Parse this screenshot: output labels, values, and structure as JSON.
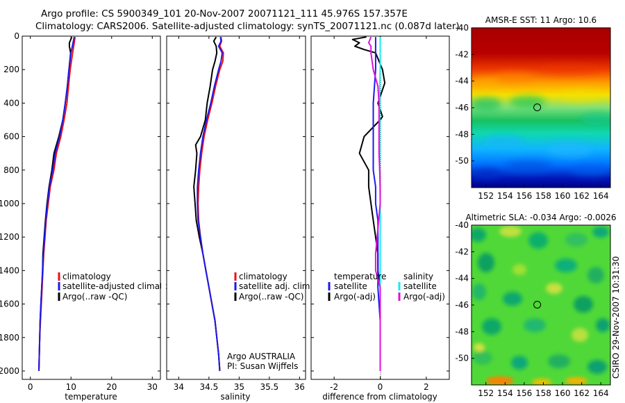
{
  "header": {
    "line1": "Argo profile: CS 5900349_101 20-Nov-2007 20071121_111 45.976S 157.357E",
    "line2": "Climatology: CARS2006. Satellite-adjusted climatology: synTS_20071121.nc (0.087d later)"
  },
  "credit": "CSIRO 29-Nov-2007 10:31:30",
  "colors": {
    "red": "#ee1111",
    "blue": "#1a1aee",
    "black": "#000000",
    "cyan": "#11eeee",
    "magenta": "#dd11dd"
  },
  "chart_data": [
    {
      "type": "line",
      "id": "temperature",
      "xlabel": "temperature",
      "xlim": [
        -2,
        32
      ],
      "ylim": [
        2050,
        0
      ],
      "xticks": [
        0,
        10,
        20,
        30
      ],
      "yticks": [
        0,
        200,
        400,
        600,
        800,
        1000,
        1200,
        1400,
        1600,
        1800,
        2000
      ],
      "legend": {
        "position": "center-right",
        "entries": [
          "climatology",
          "satellite-adjusted climatology",
          "Argo(..raw -QC)"
        ]
      },
      "series": [
        {
          "name": "climatology",
          "color": "red",
          "points": [
            [
              11.0,
              5
            ],
            [
              10.8,
              40
            ],
            [
              10.4,
              100
            ],
            [
              9.8,
              200
            ],
            [
              9.4,
              300
            ],
            [
              9.0,
              400
            ],
            [
              8.3,
              500
            ],
            [
              7.5,
              600
            ],
            [
              6.4,
              700
            ],
            [
              5.8,
              800
            ],
            [
              4.9,
              900
            ],
            [
              4.4,
              1000
            ],
            [
              3.9,
              1100
            ],
            [
              3.6,
              1200
            ],
            [
              3.3,
              1300
            ],
            [
              3.1,
              1400
            ],
            [
              2.9,
              1500
            ],
            [
              2.7,
              1600
            ],
            [
              2.5,
              1700
            ],
            [
              2.3,
              1800
            ],
            [
              2.2,
              1900
            ],
            [
              2.1,
              2000
            ]
          ]
        },
        {
          "name": "satellite-adjusted climatology",
          "color": "blue",
          "points": [
            [
              10.8,
              5
            ],
            [
              10.5,
              40
            ],
            [
              10.0,
              100
            ],
            [
              9.5,
              200
            ],
            [
              9.1,
              300
            ],
            [
              8.6,
              400
            ],
            [
              8.0,
              500
            ],
            [
              7.2,
              600
            ],
            [
              6.1,
              700
            ],
            [
              5.5,
              800
            ],
            [
              4.7,
              900
            ],
            [
              4.2,
              1000
            ],
            [
              3.8,
              1100
            ],
            [
              3.5,
              1200
            ],
            [
              3.2,
              1300
            ],
            [
              3.0,
              1400
            ],
            [
              2.8,
              1500
            ],
            [
              2.6,
              1600
            ],
            [
              2.4,
              1700
            ],
            [
              2.3,
              1800
            ],
            [
              2.2,
              1900
            ],
            [
              2.1,
              2000
            ]
          ]
        },
        {
          "name": "Argo(..raw -QC)",
          "color": "black",
          "points": [
            [
              10.2,
              5
            ],
            [
              9.6,
              40
            ],
            [
              9.6,
              60
            ],
            [
              9.9,
              100
            ],
            [
              9.5,
              200
            ],
            [
              9.1,
              300
            ],
            [
              8.6,
              400
            ],
            [
              8.0,
              500
            ],
            [
              7.0,
              600
            ],
            [
              5.8,
              700
            ],
            [
              5.3,
              800
            ],
            [
              4.6,
              900
            ],
            [
              4.1,
              1000
            ],
            [
              3.7,
              1100
            ],
            [
              3.4,
              1200
            ],
            [
              3.1,
              1300
            ],
            [
              3.0,
              1400
            ],
            [
              2.8,
              1500
            ],
            [
              2.6,
              1600
            ],
            [
              2.4,
              1700
            ],
            [
              2.3,
              1800
            ],
            [
              2.2,
              1900
            ],
            [
              2.1,
              2000
            ]
          ]
        }
      ]
    },
    {
      "type": "line",
      "id": "salinity",
      "xlabel": "salinity",
      "xlim": [
        33.8,
        36.1
      ],
      "ylim": [
        2050,
        0
      ],
      "xticks": [
        34,
        34.5,
        35,
        35.5,
        36
      ],
      "xticklabels": [
        "34",
        "34.5",
        "35",
        "35.5",
        "36"
      ],
      "legend": {
        "position": "center-right",
        "entries": [
          "climatology",
          "satellite adj. clim.",
          "Argo(..raw -QC)"
        ]
      },
      "annotation": [
        "Argo AUSTRALIA",
        "PI: Susan Wijffels"
      ],
      "series": [
        {
          "name": "climatology",
          "color": "red",
          "points": [
            [
              34.7,
              5
            ],
            [
              34.71,
              30
            ],
            [
              34.68,
              60
            ],
            [
              34.74,
              100
            ],
            [
              34.73,
              150
            ],
            [
              34.68,
              200
            ],
            [
              34.61,
              300
            ],
            [
              34.55,
              400
            ],
            [
              34.48,
              500
            ],
            [
              34.42,
              600
            ],
            [
              34.38,
              700
            ],
            [
              34.35,
              800
            ],
            [
              34.33,
              900
            ],
            [
              34.32,
              1000
            ],
            [
              34.33,
              1100
            ],
            [
              34.36,
              1200
            ],
            [
              34.4,
              1300
            ],
            [
              34.45,
              1400
            ],
            [
              34.5,
              1500
            ],
            [
              34.55,
              1600
            ],
            [
              34.6,
              1700
            ],
            [
              34.63,
              1800
            ],
            [
              34.66,
              1900
            ],
            [
              34.68,
              2000
            ]
          ]
        },
        {
          "name": "satellite adj. clim.",
          "color": "blue",
          "points": [
            [
              34.69,
              5
            ],
            [
              34.7,
              30
            ],
            [
              34.66,
              60
            ],
            [
              34.72,
              100
            ],
            [
              34.7,
              150
            ],
            [
              34.66,
              200
            ],
            [
              34.59,
              300
            ],
            [
              34.53,
              400
            ],
            [
              34.46,
              500
            ],
            [
              34.4,
              600
            ],
            [
              34.36,
              700
            ],
            [
              34.33,
              800
            ],
            [
              34.31,
              900
            ],
            [
              34.31,
              1000
            ],
            [
              34.32,
              1100
            ],
            [
              34.36,
              1200
            ],
            [
              34.4,
              1300
            ],
            [
              34.45,
              1400
            ],
            [
              34.5,
              1500
            ],
            [
              34.55,
              1600
            ],
            [
              34.6,
              1700
            ],
            [
              34.63,
              1800
            ],
            [
              34.66,
              1900
            ],
            [
              34.68,
              2000
            ]
          ]
        },
        {
          "name": "Argo(..raw -QC)",
          "color": "black",
          "points": [
            [
              34.62,
              5
            ],
            [
              34.58,
              30
            ],
            [
              34.62,
              60
            ],
            [
              34.63,
              100
            ],
            [
              34.6,
              150
            ],
            [
              34.56,
              200
            ],
            [
              34.52,
              300
            ],
            [
              34.47,
              400
            ],
            [
              34.44,
              500
            ],
            [
              34.36,
              600
            ],
            [
              34.28,
              650
            ],
            [
              34.3,
              700
            ],
            [
              34.28,
              800
            ],
            [
              34.25,
              900
            ],
            [
              34.27,
              1000
            ],
            [
              34.29,
              1100
            ],
            [
              34.34,
              1200
            ],
            [
              34.4,
              1300
            ],
            [
              34.45,
              1400
            ],
            [
              34.5,
              1500
            ],
            [
              34.55,
              1600
            ],
            [
              34.6,
              1700
            ],
            [
              34.63,
              1800
            ],
            [
              34.66,
              1900
            ],
            [
              34.68,
              2000
            ]
          ]
        }
      ]
    },
    {
      "type": "line",
      "id": "difference",
      "xlabel": "difference from climatology",
      "xlim": [
        -3,
        3
      ],
      "ylim": [
        2050,
        0
      ],
      "xticks": [
        -2,
        0,
        2
      ],
      "legend": {
        "position": "center",
        "groups": [
          {
            "title": "temperature",
            "entries": [
              "satellite",
              "Argo(-adj)"
            ]
          },
          {
            "title": "salinity",
            "entries": [
              "satellite",
              "Argo(-adj)"
            ]
          }
        ]
      },
      "series": [
        {
          "name": "temperature satellite",
          "color": "blue",
          "points": [
            [
              -0.2,
              5
            ],
            [
              -0.2,
              100
            ],
            [
              -0.2,
              200
            ],
            [
              -0.25,
              300
            ],
            [
              -0.3,
              400
            ],
            [
              -0.3,
              500
            ],
            [
              -0.3,
              600
            ],
            [
              -0.3,
              700
            ],
            [
              -0.3,
              800
            ],
            [
              -0.2,
              900
            ],
            [
              -0.2,
              1000
            ],
            [
              -0.1,
              1100
            ],
            [
              -0.1,
              1200
            ],
            [
              -0.1,
              1300
            ],
            [
              -0.1,
              1400
            ],
            [
              -0.1,
              1500
            ],
            [
              -0.05,
              1600
            ],
            [
              0,
              1700
            ],
            [
              0,
              1800
            ],
            [
              0,
              1900
            ],
            [
              0,
              2000
            ]
          ]
        },
        {
          "name": "temperature Argo(-adj)",
          "color": "black",
          "points": [
            [
              -0.6,
              5
            ],
            [
              -1.2,
              20
            ],
            [
              -0.9,
              40
            ],
            [
              -1.1,
              60
            ],
            [
              -0.7,
              80
            ],
            [
              -0.2,
              100
            ],
            [
              0.1,
              200
            ],
            [
              0.2,
              280
            ],
            [
              -0.1,
              400
            ],
            [
              0.1,
              480
            ],
            [
              0.0,
              500
            ],
            [
              -0.7,
              600
            ],
            [
              -0.9,
              700
            ],
            [
              -0.5,
              800
            ],
            [
              -0.5,
              900
            ],
            [
              -0.4,
              1000
            ],
            [
              -0.3,
              1100
            ],
            [
              -0.2,
              1200
            ],
            [
              -0.1,
              1300
            ],
            [
              -0.1,
              1400
            ],
            [
              0,
              1500
            ],
            [
              0,
              1600
            ],
            [
              0,
              1700
            ],
            [
              0,
              1800
            ],
            [
              0,
              1900
            ],
            [
              0,
              2000
            ]
          ]
        },
        {
          "name": "salinity satellite",
          "color": "cyan",
          "points": [
            [
              0,
              5
            ],
            [
              0,
              100
            ],
            [
              0,
              200
            ],
            [
              -0.02,
              300
            ],
            [
              -0.02,
              400
            ],
            [
              -0.02,
              500
            ],
            [
              -0.02,
              600
            ],
            [
              -0.02,
              700
            ],
            [
              -0.02,
              800
            ],
            [
              -0.01,
              900
            ],
            [
              0,
              1000
            ],
            [
              0,
              1200
            ],
            [
              0,
              1400
            ],
            [
              0,
              1600
            ],
            [
              0,
              1800
            ],
            [
              0,
              2000
            ]
          ]
        },
        {
          "name": "salinity Argo(-adj)",
          "color": "magenta",
          "points": [
            [
              -0.4,
              5
            ],
            [
              -0.5,
              40
            ],
            [
              -0.4,
              60
            ],
            [
              -0.4,
              100
            ],
            [
              -0.3,
              200
            ],
            [
              -0.1,
              300
            ],
            [
              -0.05,
              400
            ],
            [
              -0.05,
              500
            ],
            [
              -0.05,
              600
            ],
            [
              -0.05,
              700
            ],
            [
              -0.02,
              800
            ],
            [
              0,
              900
            ],
            [
              0,
              1000
            ],
            [
              -0.2,
              1300
            ],
            [
              -0.2,
              1400
            ],
            [
              0,
              1500
            ],
            [
              0,
              1600
            ],
            [
              0,
              1800
            ],
            [
              0,
              2000
            ]
          ]
        }
      ]
    },
    {
      "type": "heatmap",
      "id": "sst",
      "title": "AMSR-E SST: 11 Argo: 10.6",
      "xlim": [
        150.5,
        165
      ],
      "ylim": [
        -52,
        -40
      ],
      "xticks": [
        152,
        154,
        156,
        158,
        160,
        162,
        164
      ],
      "yticks": [
        -40,
        -42,
        -44,
        -46,
        -48,
        -50
      ],
      "marker": [
        157.357,
        -45.976
      ]
    },
    {
      "type": "heatmap",
      "id": "sla",
      "title": "Altimetric SLA: -0.034 Argo: -0.0026",
      "xlim": [
        150.5,
        165
      ],
      "ylim": [
        -52,
        -40
      ],
      "xticks": [
        152,
        154,
        156,
        158,
        160,
        162,
        164
      ],
      "yticks": [
        -40,
        -42,
        -44,
        -46,
        -48,
        -50
      ],
      "marker": [
        157.357,
        -45.976
      ]
    }
  ]
}
